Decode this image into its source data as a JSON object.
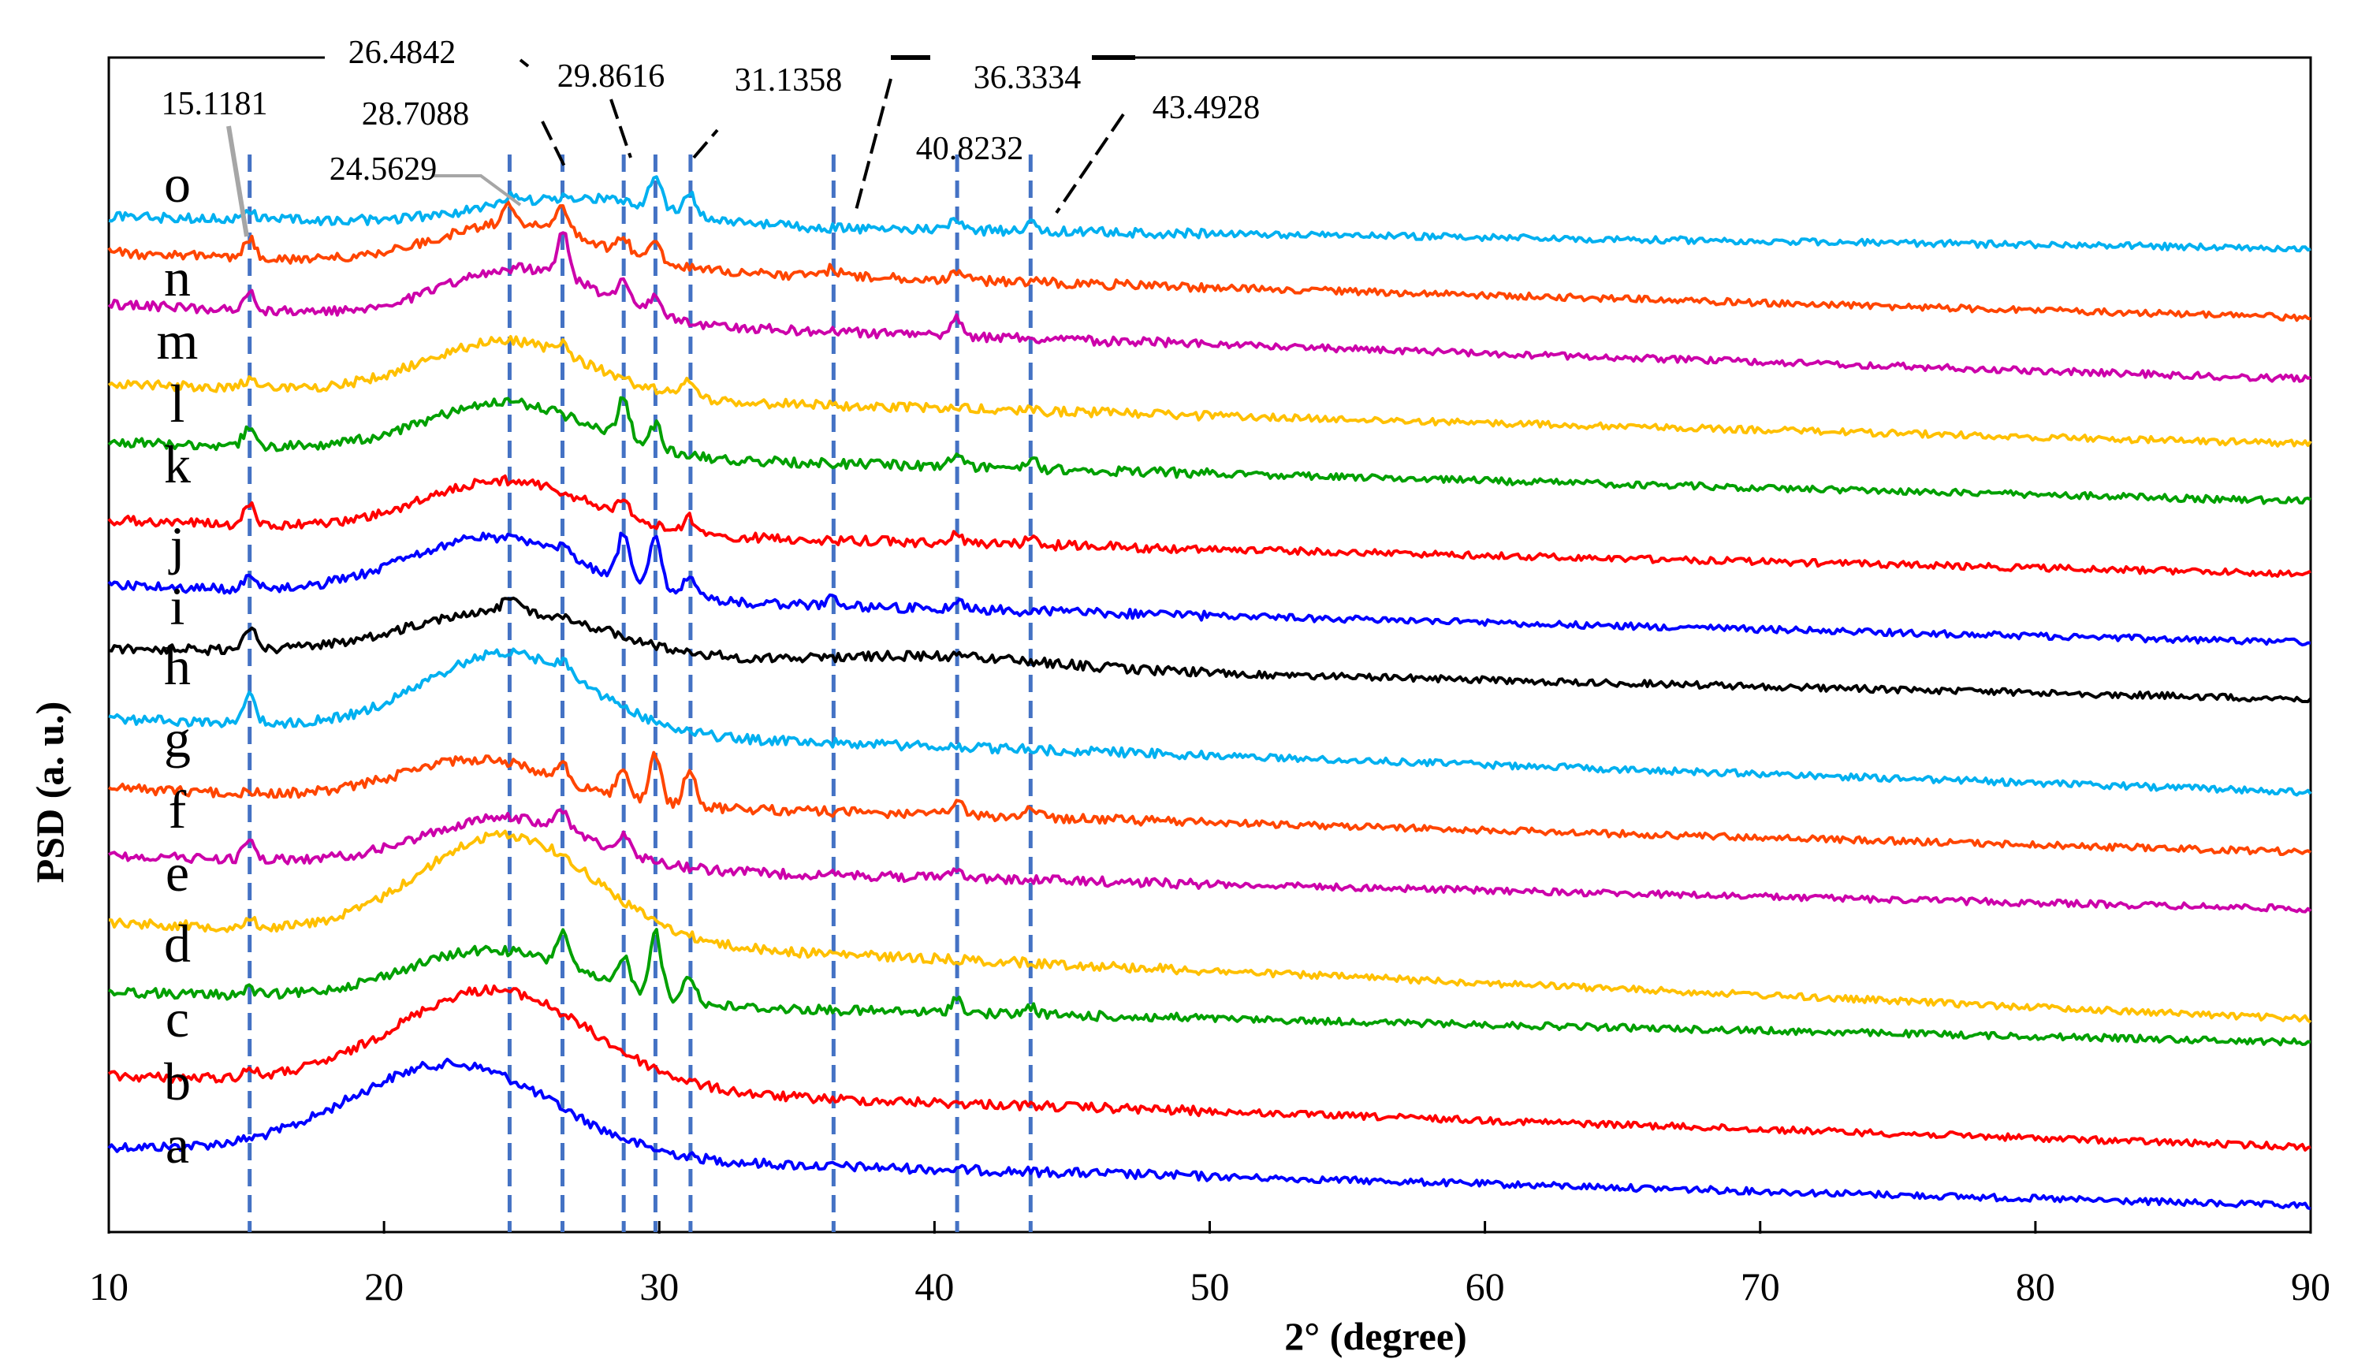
{
  "chart_data": {
    "type": "line",
    "xlabel": "2° (degree)",
    "ylabel": "PSD (a. u.)",
    "xlim": [
      10,
      90
    ],
    "xticks": [
      10,
      20,
      30,
      40,
      50,
      60,
      70,
      80,
      90
    ],
    "grid": false,
    "series": [
      {
        "name": "a",
        "color": "#0000ff"
      },
      {
        "name": "b",
        "color": "#ff0000"
      },
      {
        "name": "c",
        "color": "#00a000"
      },
      {
        "name": "d",
        "color": "#ffc000"
      },
      {
        "name": "e",
        "color": "#cc00aa"
      },
      {
        "name": "f",
        "color": "#ff4500"
      },
      {
        "name": "g",
        "color": "#00b0f0"
      },
      {
        "name": "h",
        "color": "#000000"
      },
      {
        "name": "i",
        "color": "#0000ff"
      },
      {
        "name": "j",
        "color": "#ff0000"
      },
      {
        "name": "k",
        "color": "#00a000"
      },
      {
        "name": "l",
        "color": "#ffc000"
      },
      {
        "name": "m",
        "color": "#cc00aa"
      },
      {
        "name": "n",
        "color": "#ff4500"
      },
      {
        "name": "o",
        "color": "#00b0f0"
      }
    ],
    "peak_markers": [
      {
        "label": "15.1181",
        "x": 15.1181
      },
      {
        "label": "24.5629",
        "x": 24.5629
      },
      {
        "label": "26.4842",
        "x": 26.4842
      },
      {
        "label": "28.7088",
        "x": 28.7088
      },
      {
        "label": "29.8616",
        "x": 29.8616
      },
      {
        "label": "31.1358",
        "x": 31.1358
      },
      {
        "label": "36.3334",
        "x": 36.3334
      },
      {
        "label": "40.8232",
        "x": 40.8232
      },
      {
        "label": "43.4928",
        "x": 43.4928
      }
    ],
    "marker_color": "#4472c4"
  }
}
